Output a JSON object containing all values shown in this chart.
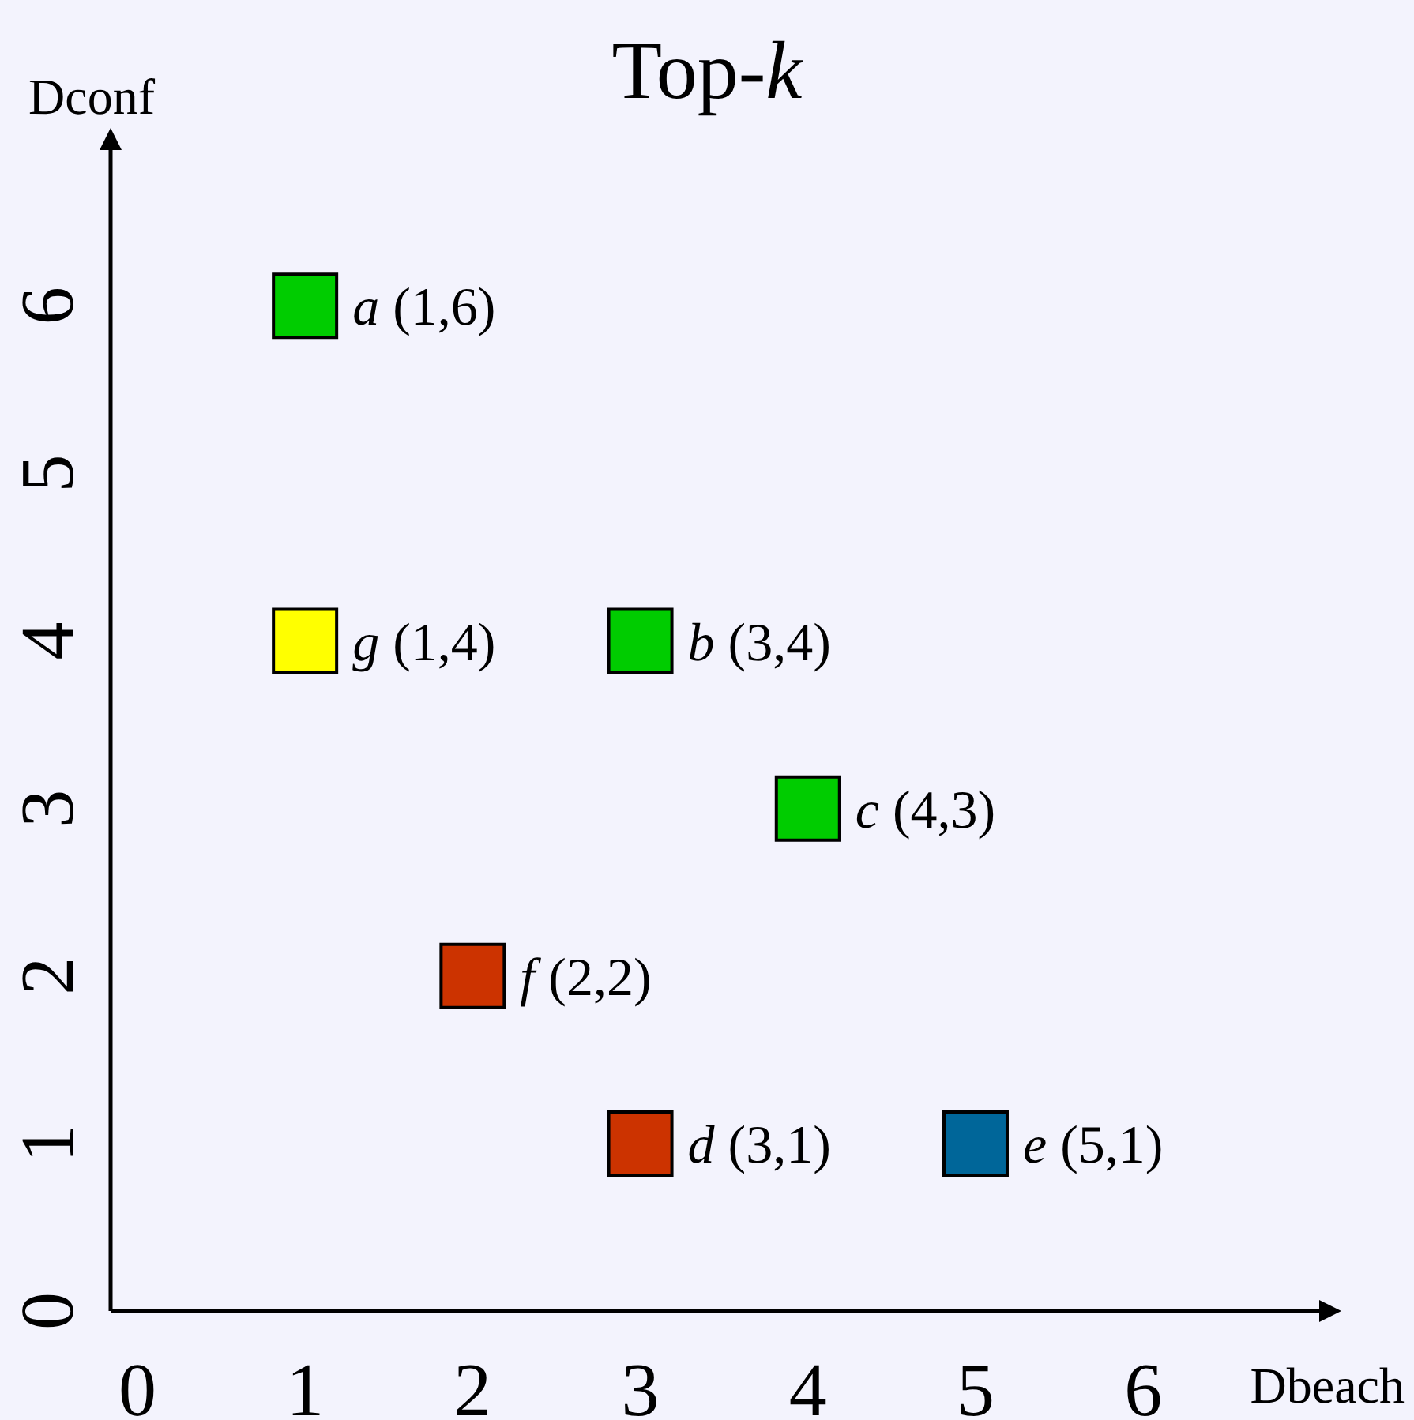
{
  "chart_data": {
    "type": "scatter",
    "title": "Top-k",
    "xlabel": "Dbeach",
    "ylabel": "Dconf",
    "x": [
      1,
      3,
      4,
      3,
      5,
      2,
      1
    ],
    "values": [
      6,
      4,
      3,
      1,
      1,
      2,
      4
    ],
    "colors": [
      "#00cc00",
      "#00cc00",
      "#00cc00",
      "#cc3300",
      "#006699",
      "#cc3300",
      "#ffff00"
    ],
    "marker": "square",
    "grid": false,
    "xlim": [
      -0.16,
      7.05
    ],
    "ylim": [
      0,
      6.93
    ],
    "xticks": [
      0,
      1,
      2,
      3,
      4,
      5,
      6
    ],
    "yticks": [
      0,
      1,
      2,
      3,
      4,
      5,
      6
    ],
    "annotations": [
      {
        "text": "a (1,6)",
        "x": 1,
        "y": 6
      },
      {
        "text": "b (3,4)",
        "x": 3,
        "y": 4
      },
      {
        "text": "c (4,3)",
        "x": 4,
        "y": 3
      },
      {
        "text": "d (3,1)",
        "x": 3,
        "y": 1
      },
      {
        "text": "e (5,1)",
        "x": 5,
        "y": 1
      },
      {
        "text": "f (2,2)",
        "x": 2,
        "y": 2
      },
      {
        "text": "g (1,4)",
        "x": 1,
        "y": 4
      }
    ]
  }
}
